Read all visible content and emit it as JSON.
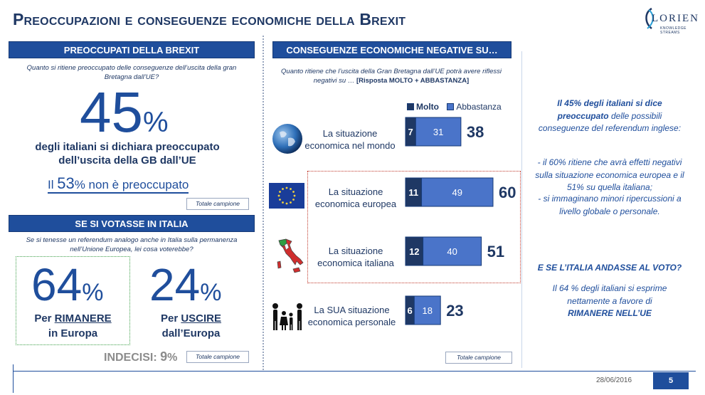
{
  "page": {
    "title": "Preoccupazioni e conseguenze economiche della Brexit",
    "logo_text": "LORIEN",
    "logo_sub": "KNOWLEDGE STREAMS",
    "date": "28/06/2016",
    "page_number": "5"
  },
  "left": {
    "header1": "PREOCCUPATI DELLA BREXIT",
    "question1": "Quanto si ritiene preoccupato delle conseguenze dell’uscita della gran Bretagna dall’UE?",
    "big_value": "45",
    "big_pct": "%",
    "big_desc": "degli italiani si dichiara preoccupato dell’uscita della GB dall’UE",
    "not_prefix": "Il ",
    "not_value": "53",
    "not_suffix": "% non è preoccupato",
    "totale1": "Totale campione",
    "header2": "SE SI VOTASSE IN ITALIA",
    "question2": "Se si tenesse un referendum analogo anche in Italia sulla permanenza nell’Unione Europea, lei cosa voterebbe?",
    "remain_value": "64",
    "remain_pct": "%",
    "remain_pre": "Per ",
    "remain_word": "RIMANERE",
    "remain_post": "in Europa",
    "leave_value": "24",
    "leave_pct": "%",
    "leave_pre": "Per ",
    "leave_word": "USCIRE",
    "leave_post": "dall’Europa",
    "indecisi_label": "INDECISI: ",
    "indecisi_value": "9",
    "indecisi_pct": "%",
    "totale2": "Totale campione"
  },
  "center": {
    "header": "CONSEGUENZE ECONOMICHE NEGATIVE SU…",
    "question": "Quanto ritiene che l’uscita della Gran Bretagna dall’UE potrà avere riflessi negativi su …",
    "question_bold": "[Risposta MOLTO + ABBASTANZA]",
    "totale": "Totale campione"
  },
  "chart_data": {
    "type": "bar",
    "stacked": true,
    "orientation": "horizontal",
    "categories": [
      "La situazione economica nel mondo",
      "La situazione economica europea",
      "La situazione economica italiana",
      "La SUA situazione economica personale"
    ],
    "series": [
      {
        "name": "Molto",
        "values": [
          7,
          11,
          12,
          6
        ],
        "color": "#1f3864"
      },
      {
        "name": "Abbastanza",
        "values": [
          31,
          49,
          40,
          18
        ],
        "color": "#4a74c9"
      }
    ],
    "totals": [
      38,
      60,
      51,
      23
    ],
    "legend": "top",
    "grid": false
  },
  "right": {
    "p1_bold": "Il 45% degli italiani si dice preoccupato",
    "p1_rest": " delle possibili conseguenze del referendum inglese:",
    "p2": "- il 60% ritiene che avrà effetti negativi sulla situazione economica europea e il 51% su quella italiana;",
    "p3": "- si immaginano minori ripercussioni a livello globale o personale.",
    "p4": "E SE L’ITALIA ANDASSE AL VOTO?",
    "p5": "Il 64 % degli italiani si esprime nettamente a favore di",
    "p5_bold": "RIMANERE NELL’UE"
  },
  "colors": {
    "navy": "#1f3864",
    "header_blue": "#1f4e9c",
    "molto": "#1f3864",
    "abbastanza": "#4a74c9"
  }
}
